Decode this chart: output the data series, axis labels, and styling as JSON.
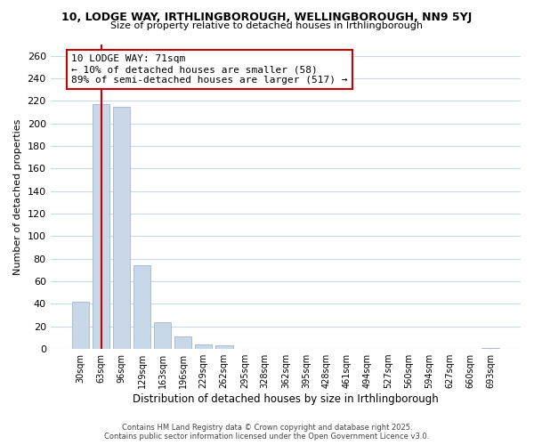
{
  "title": "10, LODGE WAY, IRTHLINGBOROUGH, WELLINGBOROUGH, NN9 5YJ",
  "subtitle": "Size of property relative to detached houses in Irthlingborough",
  "xlabel": "Distribution of detached houses by size in Irthlingborough",
  "ylabel": "Number of detached properties",
  "categories": [
    "30sqm",
    "63sqm",
    "96sqm",
    "129sqm",
    "163sqm",
    "196sqm",
    "229sqm",
    "262sqm",
    "295sqm",
    "328sqm",
    "362sqm",
    "395sqm",
    "428sqm",
    "461sqm",
    "494sqm",
    "527sqm",
    "560sqm",
    "594sqm",
    "627sqm",
    "660sqm",
    "693sqm"
  ],
  "values": [
    42,
    217,
    215,
    74,
    24,
    11,
    4,
    3,
    0,
    0,
    0,
    0,
    0,
    0,
    0,
    0,
    0,
    0,
    0,
    0,
    1
  ],
  "bar_color": "#c8d8e8",
  "bar_edge_color": "#a0b8cc",
  "ylim": [
    0,
    270
  ],
  "yticks": [
    0,
    20,
    40,
    60,
    80,
    100,
    120,
    140,
    160,
    180,
    200,
    220,
    240,
    260
  ],
  "red_line_index": 1.0,
  "annotation_title": "10 LODGE WAY: 71sqm",
  "annotation_line1": "← 10% of detached houses are smaller (58)",
  "annotation_line2": "89% of semi-detached houses are larger (517) →",
  "annotation_box_color": "#ffffff",
  "annotation_box_edge": "#cc0000",
  "red_line_color": "#cc0000",
  "background_color": "#ffffff",
  "grid_color": "#c8d8e8",
  "footer_line1": "Contains HM Land Registry data © Crown copyright and database right 2025.",
  "footer_line2": "Contains public sector information licensed under the Open Government Licence v3.0."
}
